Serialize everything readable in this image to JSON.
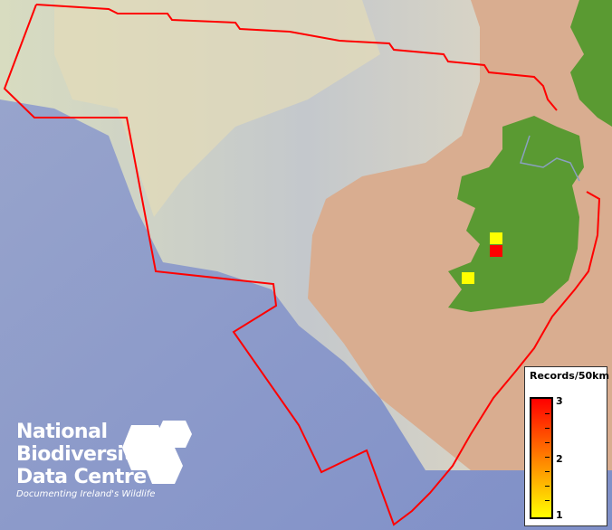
{
  "map": {
    "boundary_color": "#ff0000",
    "land_color": "#5a9a32",
    "records": [
      {
        "count": 1,
        "color": "#ffff00"
      },
      {
        "count": 3,
        "color": "#ff0000"
      },
      {
        "count": 1,
        "color": "#ffff00"
      }
    ]
  },
  "legend": {
    "title": "Records/50km",
    "max_label": "3",
    "mid_label": "2",
    "min_label": "1",
    "color_low": "#ffff00",
    "color_high": "#ff0000"
  },
  "logo": {
    "line1": "National",
    "line2": "Biodiversity",
    "line3": "Data Centre",
    "tagline": "Documenting Ireland's Wildlife"
  }
}
